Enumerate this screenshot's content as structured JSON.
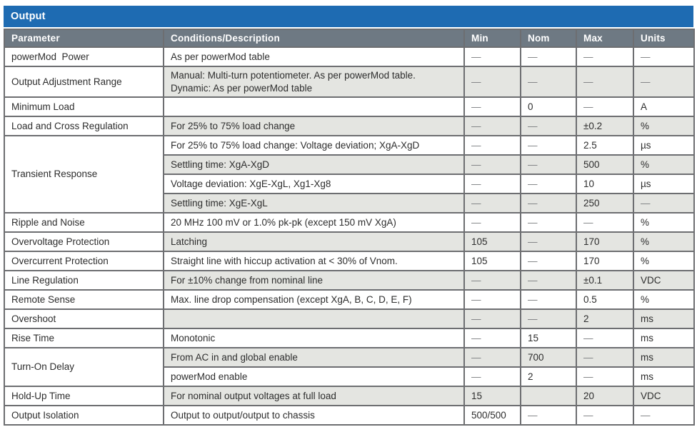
{
  "table": {
    "title": "Output",
    "columns": [
      "Parameter",
      "Conditions/Description",
      "Min",
      "Nom",
      "Max",
      "Units"
    ],
    "colors": {
      "title_bar": "#1e6bb2",
      "header_bg": "#6e7983",
      "stripe": "#e4e5e1",
      "border": "#6d6e71",
      "header_text": "#ffffff",
      "dash_text": "#7d7f82"
    },
    "rows": [
      {
        "param": "powerMod  Power",
        "span": 1,
        "cond": "As per powerMod table",
        "min": "—",
        "nom": "—",
        "max": "—",
        "units": "—",
        "shaded": false
      },
      {
        "param": "Output Adjustment Range",
        "span": 1,
        "cond": "Manual: Multi-turn potentiometer. As per powerMod table.\nDynamic: As per powerMod table",
        "min": "—",
        "nom": "—",
        "max": "—",
        "units": "—",
        "shaded": true
      },
      {
        "param": "Minimum Load",
        "span": 1,
        "cond": "",
        "min": "—",
        "nom": "0",
        "max": "—",
        "units": "A",
        "shaded": false
      },
      {
        "param": "Load and Cross Regulation",
        "span": 1,
        "cond": "For 25% to 75% load change",
        "min": "—",
        "nom": "—",
        "max": "±0.2",
        "units": "%",
        "shaded": true
      },
      {
        "param": "Transient Response",
        "span": 4,
        "cond": "For 25% to 75% load change: Voltage deviation; XgA-XgD",
        "min": "—",
        "nom": "—",
        "max": "2.5",
        "units": "µs",
        "shaded": false
      },
      {
        "cond": "Settling time: XgA-XgD",
        "min": "—",
        "nom": "—",
        "max": "500",
        "units": "%",
        "shaded": true
      },
      {
        "cond": "Voltage deviation: XgE-XgL, Xg1-Xg8",
        "min": "—",
        "nom": "—",
        "max": "10",
        "units": "µs",
        "shaded": false
      },
      {
        "cond": "Settling time: XgE-XgL",
        "min": "—",
        "nom": "—",
        "max": "250",
        "units": "—",
        "shaded": true
      },
      {
        "param": "Ripple and Noise",
        "span": 1,
        "cond": "20 MHz 100 mV or 1.0% pk-pk (except 150 mV XgA)",
        "min": "—",
        "nom": "—",
        "max": "—",
        "units": "%",
        "shaded": false
      },
      {
        "param": "Overvoltage Protection",
        "span": 1,
        "cond": "Latching",
        "min": "105",
        "nom": "—",
        "max": "170",
        "units": "%",
        "shaded": true
      },
      {
        "param": "Overcurrent Protection",
        "span": 1,
        "cond": "Straight line with hiccup activation at < 30% of Vnom.",
        "min": "105",
        "nom": "—",
        "max": "170",
        "units": "%",
        "shaded": false
      },
      {
        "param": "Line Regulation",
        "span": 1,
        "cond": "For ±10% change from nominal line",
        "min": "—",
        "nom": "—",
        "max": "±0.1",
        "units": "VDC",
        "shaded": true
      },
      {
        "param": "Remote Sense",
        "span": 1,
        "cond": "Max. line drop compensation (except XgA, B, C, D, E, F)",
        "min": "—",
        "nom": "—",
        "max": "0.5",
        "units": "%",
        "shaded": false
      },
      {
        "param": "Overshoot",
        "span": 1,
        "cond": "",
        "min": "—",
        "nom": "—",
        "max": "2",
        "units": "ms",
        "shaded": true
      },
      {
        "param": "Rise Time",
        "span": 1,
        "cond": "Monotonic",
        "min": "—",
        "nom": "15",
        "max": "—",
        "units": "ms",
        "shaded": false
      },
      {
        "param": "Turn-On Delay",
        "span": 2,
        "cond": "From AC in and global enable",
        "min": "—",
        "nom": "700",
        "max": "—",
        "units": "ms",
        "shaded": true
      },
      {
        "cond": "powerMod enable",
        "min": "—",
        "nom": "2",
        "max": "—",
        "units": "ms",
        "shaded": false
      },
      {
        "param": "Hold-Up Time",
        "span": 1,
        "cond": "For nominal output voltages at full load",
        "min": "15",
        "nom": "",
        "max": "20",
        "units": "VDC",
        "shaded": true
      },
      {
        "param": "Output Isolation",
        "span": 1,
        "cond": "Output to output/output to chassis",
        "min": "500/500",
        "nom": "—",
        "max": "—",
        "units": "—",
        "shaded": false
      }
    ]
  }
}
